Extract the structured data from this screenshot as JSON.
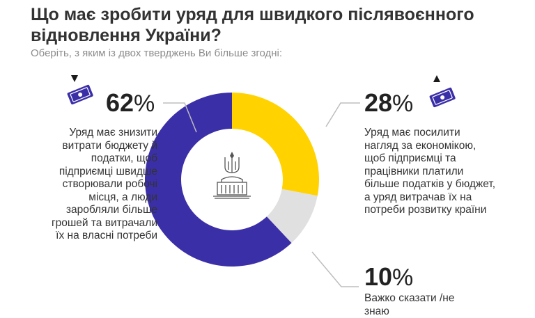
{
  "header": {
    "title": "Що має зробити уряд для швидкого післявоєнного відновлення України?",
    "subtitle": "Оберіть, з яким із двох тверджень Ви більше згодні:"
  },
  "chart_data": {
    "type": "pie",
    "donut": true,
    "slices": [
      {
        "value": 62,
        "pct_label": "62",
        "label": "Уряд має знизити витрати бюджету й податки, щоб підприємці швидше створювали робочі місця, а люди заробляли більше грошей та витрачали їх на власні потреби",
        "color": "#3b2fa8",
        "icon": "money-down-icon"
      },
      {
        "value": 28,
        "pct_label": "28",
        "label": "Уряд має посилити нагляд за економікою, щоб підприємці та працівники платили більше податків у бюджет, а уряд витрачав їх на потреби розвитку країни",
        "color": "#ffd200",
        "icon": "money-up-icon"
      },
      {
        "value": 10,
        "pct_label": "10",
        "label": "Важко сказати /не знаю",
        "color": "#e0e0e0",
        "icon": ""
      }
    ],
    "percent_sign": "%",
    "center_icon": "government-building-trident-icon"
  },
  "colors": {
    "leader_line": "#bdbdbd",
    "center_bg": "#ffffff"
  }
}
